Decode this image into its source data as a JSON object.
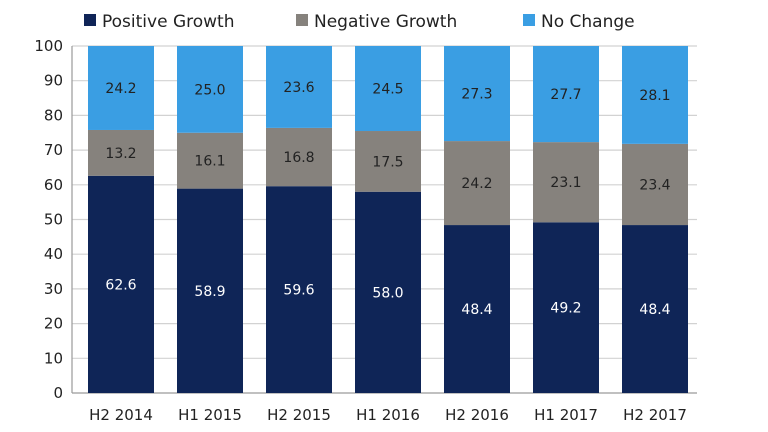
{
  "chart_data": {
    "type": "bar",
    "stacked": true,
    "categories": [
      "H2 2014",
      "H1 2015",
      "H2 2015",
      "H1 2016",
      "H2 2016",
      "H1 2017",
      "H2 2017"
    ],
    "series": [
      {
        "name": "Positive Growth",
        "color": "#0f2557",
        "label_color": "#ffffff",
        "values": [
          62.6,
          58.9,
          59.6,
          58.0,
          48.4,
          49.2,
          48.4
        ],
        "labels": [
          "62.6",
          "58.9",
          "59.6",
          "58.0",
          "48.4",
          "49.2",
          "48.4"
        ]
      },
      {
        "name": "Negative Growth",
        "color": "#86827d",
        "label_color": "#222222",
        "values": [
          13.2,
          16.1,
          16.8,
          17.5,
          24.2,
          23.1,
          23.4
        ],
        "labels": [
          "13.2",
          "16.1",
          "16.8",
          "17.5",
          "24.2",
          "23.1",
          "23.4"
        ]
      },
      {
        "name": "No Change",
        "color": "#3a9ee3",
        "label_color": "#222222",
        "values": [
          24.2,
          25.0,
          23.6,
          24.5,
          27.3,
          27.7,
          28.1
        ],
        "labels": [
          "24.2",
          "25.0",
          "23.6",
          "24.5",
          "27.3",
          "27.7",
          "28.1"
        ]
      }
    ],
    "ylim": [
      0,
      100
    ],
    "yticks": [
      "0",
      "10",
      "20",
      "30",
      "40",
      "50",
      "60",
      "70",
      "80",
      "90",
      "100"
    ],
    "grid": true,
    "legend": "top"
  }
}
